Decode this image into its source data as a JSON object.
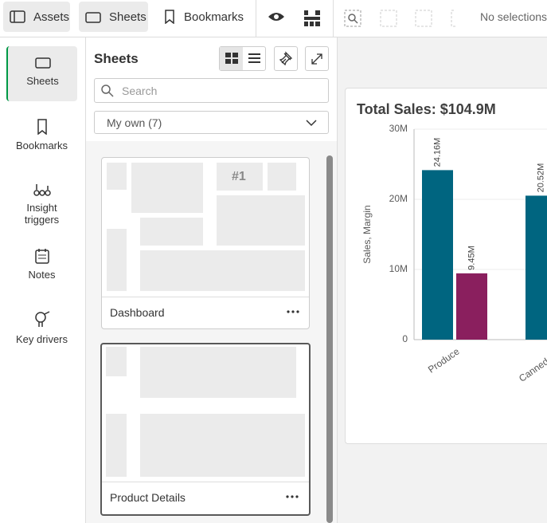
{
  "toolbar": {
    "assets": "Assets",
    "sheets": "Sheets",
    "bookmarks": "Bookmarks",
    "selections": "No selections"
  },
  "nav": [
    "Sheets",
    "Bookmarks",
    "Insight triggers",
    "Notes",
    "Key drivers"
  ],
  "panel": {
    "title": "Sheets",
    "search": "Search",
    "filter": "My own (7)",
    "sheets": [
      {
        "title": "Dashboard",
        "kpi": "#1"
      },
      {
        "title": "Product Details"
      }
    ]
  },
  "chart_data": {
    "type": "bar",
    "title": "Total Sales: $104.9M",
    "y_label": "Sales, Margin",
    "categories": [
      "Produce",
      "Canned Pro"
    ],
    "series": [
      {
        "color": "#006580",
        "values": [
          24160000,
          20520000
        ],
        "value_labels": [
          "24.16M",
          "20.52M"
        ]
      },
      {
        "color": "#8a1f5e",
        "values": [
          9450000,
          null
        ],
        "value_labels": [
          "9.45M",
          null
        ]
      }
    ],
    "ylim": [
      0,
      30000000
    ],
    "yticks": [
      0,
      {
        "value": 10000000,
        "label": "10M"
      },
      {
        "value": 20000000,
        "label": "20M"
      },
      {
        "value": 30000000,
        "label": "30M"
      }
    ],
    "grid": true
  }
}
